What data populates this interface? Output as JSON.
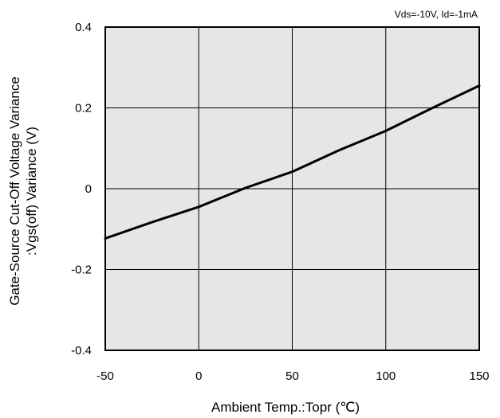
{
  "chart_data": {
    "type": "line",
    "condition_label": "Vds=-10V, Id=-1mA",
    "xlabel": "Ambient Temp.:Topr (℃)",
    "ylabel_lines": [
      "Gate-Source Cut-Off Voltage Variance",
      ":Vgs(off)  Variance  (V)"
    ],
    "xlim": [
      -50,
      150
    ],
    "ylim": [
      -0.4,
      0.4
    ],
    "x_ticks": [
      -50,
      0,
      50,
      100,
      150
    ],
    "x_tick_labels": [
      "-50",
      "0",
      "50",
      "100",
      "150"
    ],
    "y_ticks": [
      0.4,
      0.2,
      0,
      -0.2,
      -0.4
    ],
    "y_tick_labels": [
      "0.4",
      "0.2",
      "0",
      "-0.2",
      "-0.4"
    ],
    "grid": true,
    "plot_background": "#e6e6e6",
    "series": [
      {
        "color": "#000000",
        "x": [
          -50,
          -25,
          0,
          25,
          50,
          75,
          100,
          125,
          150
        ],
        "y": [
          -0.123,
          -0.083,
          -0.045,
          0.002,
          0.042,
          0.095,
          0.143,
          0.2,
          0.255
        ]
      }
    ]
  }
}
